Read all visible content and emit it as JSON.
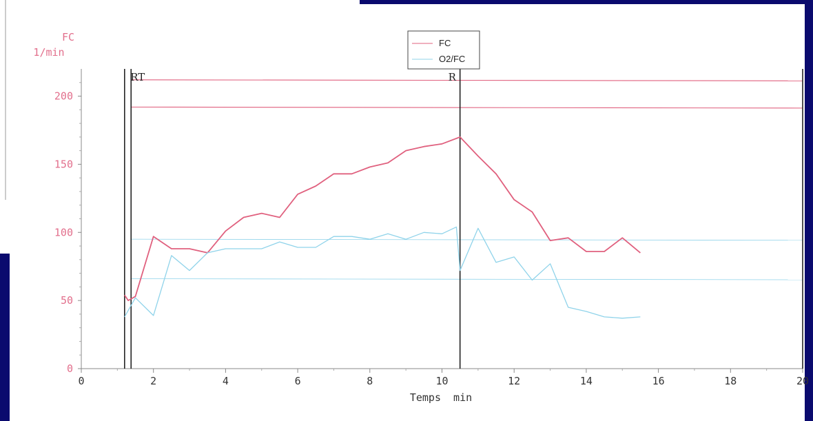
{
  "colors": {
    "frame": "#0a0a6e",
    "background": "#ffffff",
    "fc_line": "#e0607e",
    "o2fc_line": "#8fd3ea",
    "axis_text": "#e26f8c",
    "axis_text_x": "#333333",
    "marker_line": "#222222"
  },
  "chart_data": {
    "type": "line",
    "ylabel_line1": "FC",
    "ylabel_line2": "1/min",
    "xlabel": "Temps  min",
    "xlim": [
      0,
      20
    ],
    "ylim": [
      0,
      220
    ],
    "xticks": [
      0,
      2,
      4,
      6,
      8,
      10,
      12,
      14,
      16,
      18,
      20
    ],
    "xtick_labels": [
      "0",
      "2",
      "4",
      "6",
      "8",
      "10",
      "12",
      "14",
      "16",
      "18",
      "20"
    ],
    "yticks": [
      0,
      50,
      100,
      150,
      200
    ],
    "ytick_labels": [
      "0",
      "50",
      "100",
      "150",
      "200"
    ],
    "legend_position": "top-center",
    "series": [
      {
        "name": "FC",
        "color": "#e0607e",
        "points": [
          [
            1.2,
            54
          ],
          [
            1.3,
            50
          ],
          [
            1.5,
            53
          ],
          [
            2.0,
            97
          ],
          [
            2.5,
            88
          ],
          [
            3.0,
            88
          ],
          [
            3.5,
            85
          ],
          [
            4.0,
            101
          ],
          [
            4.5,
            111
          ],
          [
            5.0,
            114
          ],
          [
            5.5,
            111
          ],
          [
            6.0,
            128
          ],
          [
            6.5,
            134
          ],
          [
            7.0,
            143
          ],
          [
            7.5,
            143
          ],
          [
            8.0,
            148
          ],
          [
            8.5,
            151
          ],
          [
            9.0,
            160
          ],
          [
            9.5,
            163
          ],
          [
            10.0,
            165
          ],
          [
            10.5,
            170
          ],
          [
            11.0,
            156
          ],
          [
            11.5,
            143
          ],
          [
            12.0,
            124
          ],
          [
            12.5,
            115
          ],
          [
            13.0,
            94
          ],
          [
            13.5,
            96
          ],
          [
            14.0,
            86
          ],
          [
            14.5,
            86
          ],
          [
            15.0,
            96
          ],
          [
            15.5,
            85
          ]
        ]
      },
      {
        "name": "O2/FC",
        "color": "#8fd3ea",
        "points": [
          [
            1.2,
            38
          ],
          [
            1.5,
            52
          ],
          [
            2.0,
            39
          ],
          [
            2.5,
            83
          ],
          [
            3.0,
            72
          ],
          [
            3.5,
            85
          ],
          [
            4.0,
            88
          ],
          [
            4.5,
            88
          ],
          [
            5.0,
            88
          ],
          [
            5.5,
            93
          ],
          [
            6.0,
            89
          ],
          [
            6.5,
            89
          ],
          [
            7.0,
            97
          ],
          [
            7.5,
            97
          ],
          [
            8.0,
            95
          ],
          [
            8.5,
            99
          ],
          [
            9.0,
            95
          ],
          [
            9.5,
            100
          ],
          [
            10.0,
            99
          ],
          [
            10.4,
            104
          ],
          [
            10.5,
            72
          ],
          [
            11.0,
            103
          ],
          [
            11.5,
            78
          ],
          [
            12.0,
            82
          ],
          [
            12.5,
            65
          ],
          [
            13.0,
            77
          ],
          [
            13.5,
            45
          ],
          [
            14.0,
            42
          ],
          [
            14.5,
            38
          ],
          [
            15.0,
            37
          ],
          [
            15.5,
            38
          ]
        ]
      }
    ],
    "reference_lines": [
      {
        "y": 212,
        "color": "#e0607e"
      },
      {
        "y": 192,
        "color": "#e0607e"
      },
      {
        "y": 95,
        "color": "#8fd3ea"
      },
      {
        "y": 66,
        "color": "#8fd3ea"
      }
    ],
    "vertical_markers": [
      {
        "x": 1.2,
        "label": ""
      },
      {
        "x": 1.38,
        "label": "RT"
      },
      {
        "x": 10.5,
        "label": "R"
      },
      {
        "x": 20,
        "label": ""
      }
    ]
  }
}
